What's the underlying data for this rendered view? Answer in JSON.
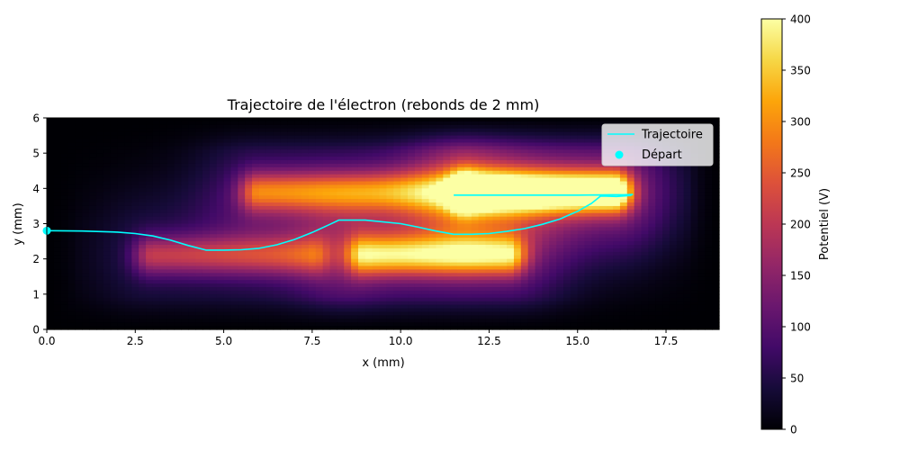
{
  "chart_data": [
    {
      "type": "heatmap",
      "title": "Trajectoire de l'électron (rebonds de 2 mm)",
      "xlabel": "x (mm)",
      "ylabel": "y (mm)",
      "xlim": [
        0,
        19
      ],
      "ylim": [
        0,
        6
      ],
      "x_ticks": [
        0,
        2.5,
        5,
        7.5,
        10,
        12.5,
        15,
        17.5
      ],
      "x_tick_labels": [
        "0.0",
        "2.5",
        "5.0",
        "7.5",
        "10.0",
        "12.5",
        "15.0",
        "17.5"
      ],
      "y_ticks": [
        0,
        1,
        2,
        3,
        4,
        5,
        6
      ],
      "y_tick_labels": [
        "0",
        "1",
        "2",
        "3",
        "4",
        "5",
        "6"
      ],
      "grid": false,
      "colormap": "inferno",
      "field": {
        "background": 0,
        "sources": [
          {
            "x": 12.0,
            "x_end": 16.0,
            "y": 3.9,
            "potential": 400
          },
          {
            "x": 6.0,
            "x_end": 11.5,
            "y": 3.9,
            "potential": 200
          },
          {
            "x": 9.0,
            "x_end": 13.0,
            "y": 2.1,
            "potential": 250
          },
          {
            "x": 3.0,
            "x_end": 7.5,
            "y": 2.1,
            "potential": 150
          }
        ]
      },
      "series": [
        {
          "name": "Trajectoire",
          "kind": "line",
          "color": "#00ffff",
          "x": [
            0,
            1,
            2,
            2.5,
            3,
            3.5,
            4,
            4.5,
            5,
            5.5,
            6,
            6.5,
            7,
            7.5,
            8,
            8.25,
            9,
            10,
            10.5,
            11,
            11.5,
            12,
            12.5,
            13,
            13.5,
            14,
            14.5,
            15,
            15.4,
            15.65,
            15.8,
            16.1,
            16.5,
            16.55,
            16.3,
            16.0,
            15.0,
            14.0,
            13.0,
            12.0,
            11.5
          ],
          "y": [
            2.8,
            2.79,
            2.76,
            2.72,
            2.65,
            2.53,
            2.38,
            2.25,
            2.25,
            2.26,
            2.3,
            2.4,
            2.55,
            2.75,
            2.98,
            3.1,
            3.1,
            3.0,
            2.9,
            2.79,
            2.7,
            2.7,
            2.72,
            2.78,
            2.86,
            2.98,
            3.13,
            3.35,
            3.58,
            3.78,
            3.78,
            3.77,
            3.8,
            3.83,
            3.82,
            3.82,
            3.81,
            3.81,
            3.81,
            3.81,
            3.81
          ]
        },
        {
          "name": "Départ",
          "kind": "scatter",
          "color": "#00ffff",
          "x": [
            0
          ],
          "y": [
            2.8
          ]
        }
      ],
      "legend": {
        "position": "top-right",
        "entries": [
          "Trajectoire",
          "Départ"
        ]
      }
    },
    {
      "type": "colorbar",
      "ylabel": "Potentiel (V)",
      "ylim": [
        0,
        400
      ],
      "ticks": [
        0,
        50,
        100,
        150,
        200,
        250,
        300,
        350,
        400
      ],
      "tick_labels": [
        "0",
        "50",
        "100",
        "150",
        "200",
        "250",
        "300",
        "350",
        "400"
      ]
    }
  ]
}
